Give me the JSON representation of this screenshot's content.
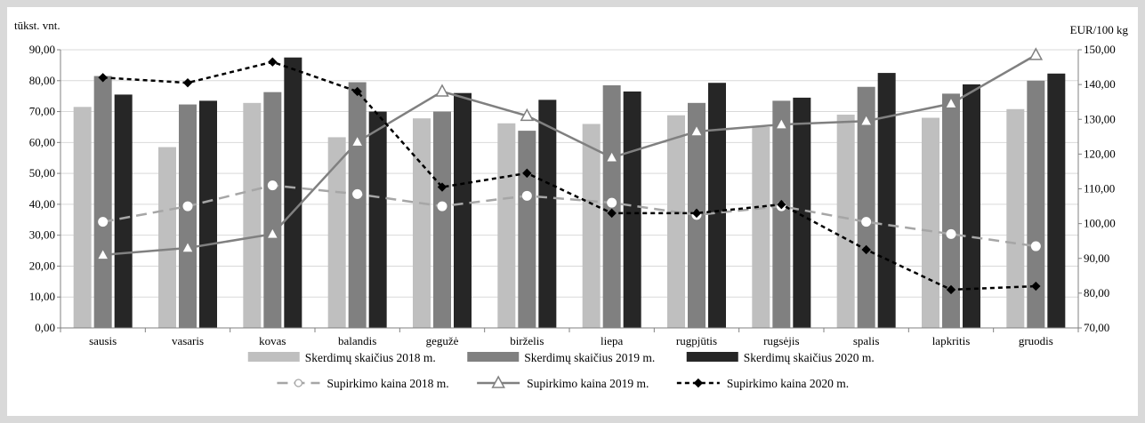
{
  "chart_data": {
    "type": "bar",
    "categories": [
      "sausis",
      "vasaris",
      "kovas",
      "balandis",
      "gegužė",
      "birželis",
      "liepa",
      "rugpjūtis",
      "rugsėjis",
      "spalis",
      "lapkritis",
      "gruodis"
    ],
    "y_left": {
      "label": "tūkst. vnt.",
      "range": [
        0,
        90
      ],
      "ticks": [
        "0,00",
        "10,00",
        "20,00",
        "30,00",
        "40,00",
        "50,00",
        "60,00",
        "70,00",
        "80,00",
        "90,00"
      ]
    },
    "y_right": {
      "label": "EUR/100 kg",
      "range": [
        70,
        150
      ],
      "ticks": [
        "70,00",
        "80,00",
        "90,00",
        "100,00",
        "110,00",
        "120,00",
        "130,00",
        "140,00",
        "150,00"
      ]
    },
    "grid": true,
    "legend_position": "bottom",
    "bar_series": [
      {
        "name": "Skerdimų skaičius 2018 m.",
        "color": "#bfbfbf",
        "values": [
          71.5,
          58.5,
          72.8,
          61.7,
          67.8,
          66.2,
          66.0,
          68.8,
          65.0,
          69.0,
          68.0,
          70.8
        ]
      },
      {
        "name": "Skerdimų skaičius 2019 m.",
        "color": "#808080",
        "values": [
          81.5,
          72.3,
          76.3,
          79.5,
          70.0,
          63.8,
          78.5,
          72.8,
          73.5,
          78.0,
          75.8,
          80.0
        ]
      },
      {
        "name": "Skerdimų skaičius 2020 m.",
        "color": "#262626",
        "values": [
          75.5,
          73.5,
          87.5,
          70.0,
          76.0,
          73.8,
          76.5,
          79.3,
          74.5,
          82.5,
          78.8,
          82.3
        ]
      }
    ],
    "line_series": [
      {
        "name": "Supirkimo kaina 2018 m.",
        "axis": "right",
        "color": "#a6a6a6",
        "dash": "dashed",
        "marker": "circle",
        "values": [
          100.5,
          105.0,
          111.0,
          108.5,
          105.0,
          108.0,
          106.0,
          102.5,
          105.0,
          100.5,
          97.0,
          93.5
        ]
      },
      {
        "name": "Supirkimo kaina 2019 m.",
        "axis": "right",
        "color": "#808080",
        "dash": "solid",
        "marker": "triangle",
        "values": [
          91.0,
          93.0,
          97.0,
          123.5,
          138.0,
          131.0,
          119.0,
          126.5,
          128.5,
          129.5,
          134.5,
          148.5
        ]
      },
      {
        "name": "Supirkimo kaina 2020 m.",
        "axis": "right",
        "color": "#000000",
        "dash": "dotted",
        "marker": "diamond",
        "values": [
          142.0,
          140.5,
          146.5,
          138.0,
          110.5,
          114.5,
          103.0,
          103.0,
          105.5,
          92.5,
          81.0,
          82.0
        ]
      }
    ]
  }
}
